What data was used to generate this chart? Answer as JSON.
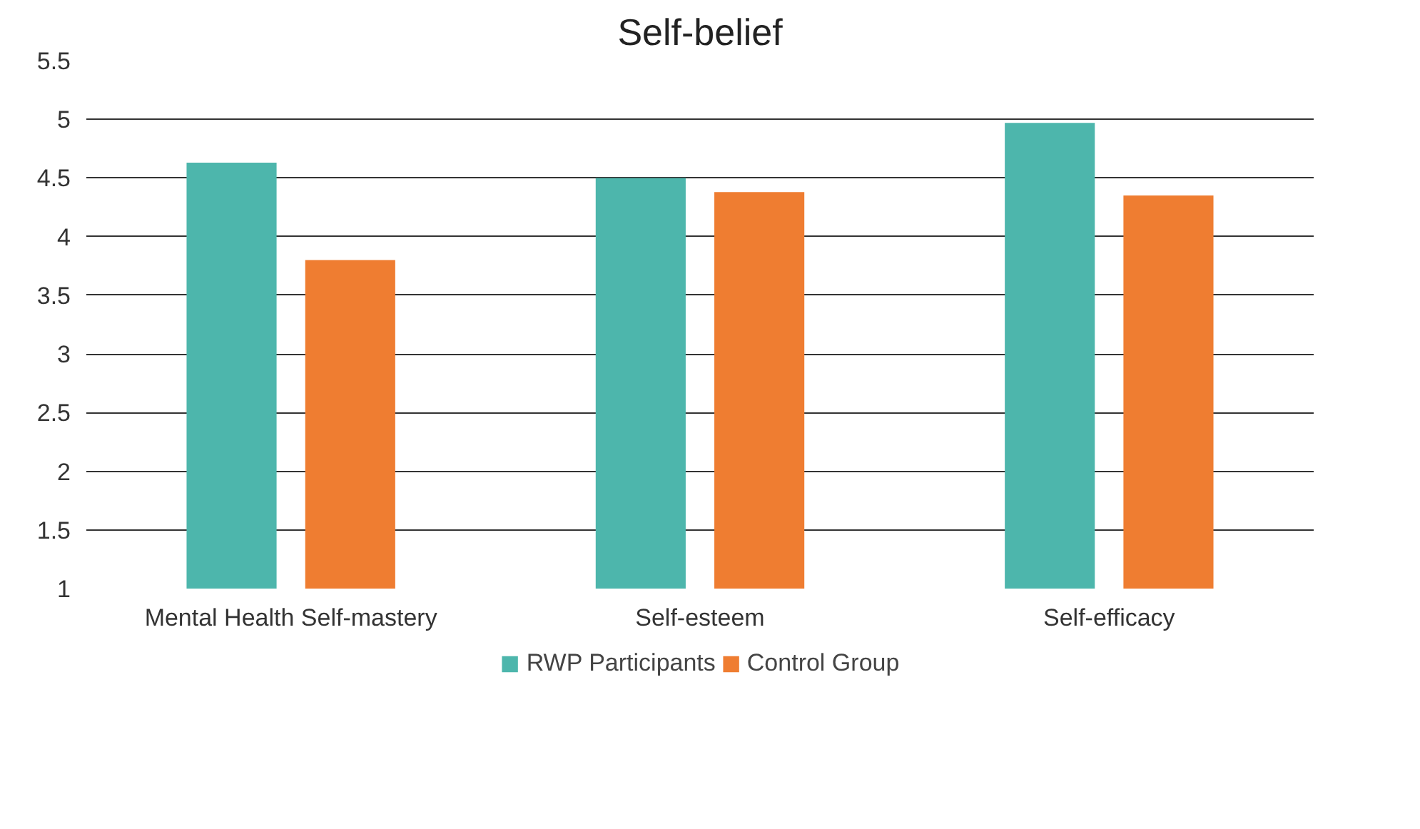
{
  "chart_data": {
    "type": "bar",
    "title": "Self-belief",
    "categories": [
      "Mental Health Self-mastery",
      "Self-esteem",
      "Self-efficacy"
    ],
    "series": [
      {
        "name": "RWP Participants",
        "color": "#4db6ac",
        "values": [
          4.63,
          4.5,
          4.97
        ]
      },
      {
        "name": "Control Group",
        "color": "#ef7d31",
        "values": [
          3.8,
          4.38,
          4.35
        ]
      }
    ],
    "ylim": [
      1,
      5.5
    ],
    "yticks": [
      1,
      1.5,
      2,
      2.5,
      3,
      3.5,
      4,
      4.5,
      5,
      5.5
    ],
    "grid": "y",
    "legend": "bottom"
  }
}
